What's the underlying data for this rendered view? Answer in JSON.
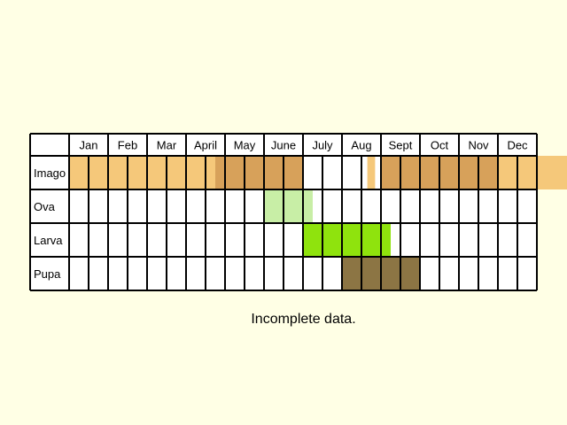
{
  "months": [
    "Jan",
    "Feb",
    "Mar",
    "April",
    "May",
    "June",
    "July",
    "Aug",
    "Sept",
    "Oct",
    "Nov",
    "Dec"
  ],
  "stages": [
    {
      "name": "Imago",
      "segments": [
        {
          "from": 0,
          "to": 7.5,
          "color": "#f5c87a"
        },
        {
          "from": 7.5,
          "to": 12,
          "color": "#d7a15a"
        },
        {
          "from": 15.3,
          "to": 15.7,
          "color": "#f5c87a"
        },
        {
          "from": 16,
          "to": 22,
          "color": "#d7a15a"
        },
        {
          "from": 22,
          "to": 26,
          "color": "#f5c87a"
        }
      ]
    },
    {
      "name": "Ova",
      "segments": [
        {
          "from": 10,
          "to": 12.5,
          "color": "#c8eea6"
        }
      ]
    },
    {
      "name": "Larva",
      "segments": [
        {
          "from": 12,
          "to": 16.5,
          "color": "#8fe30d"
        }
      ]
    },
    {
      "name": "Pupa",
      "segments": [
        {
          "from": 14,
          "to": 18,
          "color": "#8c7544"
        }
      ]
    }
  ],
  "caption": "Incomplete data."
}
